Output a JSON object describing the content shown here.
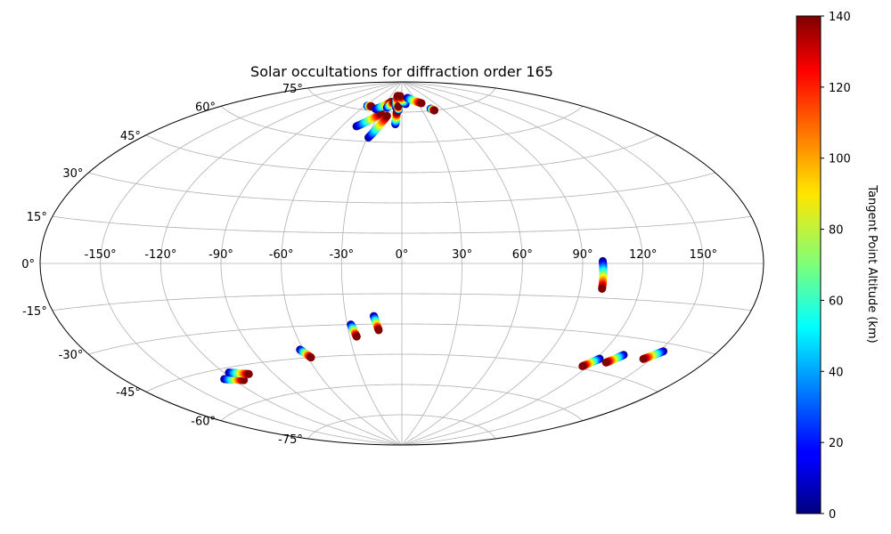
{
  "chart_data": {
    "type": "scatter",
    "projection": "aitoff",
    "title": "Solar occultations for diffraction order 165",
    "lon_ticks": [
      "-150°",
      "-120°",
      "-90°",
      "-60°",
      "-30°",
      "0°",
      "30°",
      "60°",
      "90°",
      "120°",
      "150°"
    ],
    "lon_tick_values": [
      -150,
      -120,
      -90,
      -60,
      -30,
      0,
      30,
      60,
      90,
      120,
      150
    ],
    "lat_ticks": [
      "75°",
      "60°",
      "45°",
      "30°",
      "15°",
      "0°",
      "-15°",
      "-30°",
      "-45°",
      "-60°",
      "-75°"
    ],
    "lat_tick_values": [
      75,
      60,
      45,
      30,
      15,
      0,
      -15,
      -30,
      -45,
      -60,
      -75
    ],
    "grid": true,
    "colorbar": {
      "label": "Tangent Point Altitude (km)",
      "min": 0,
      "max": 140,
      "ticks": [
        "0",
        "20",
        "40",
        "60",
        "80",
        "100",
        "120",
        "140"
      ],
      "tick_values": [
        0,
        20,
        40,
        60,
        80,
        100,
        120,
        140
      ],
      "colormap": "jet"
    },
    "tracks": [
      {
        "lon_start": -57,
        "lat_start": 77,
        "lon_end": -50,
        "lat_end": 77
      },
      {
        "lon_start": -46,
        "lat_start": 67,
        "lon_end": -28,
        "lat_end": 74
      },
      {
        "lon_start": -29,
        "lat_start": 62,
        "lon_end": -19,
        "lat_end": 73
      },
      {
        "lon_start": -40,
        "lat_start": 76,
        "lon_end": -21,
        "lat_end": 80
      },
      {
        "lon_start": -24,
        "lat_start": 77,
        "lon_end": -16,
        "lat_end": 80
      },
      {
        "lon_start": -12,
        "lat_start": 80,
        "lon_end": -11,
        "lat_end": 83
      },
      {
        "lon_start": -9,
        "lat_start": 77,
        "lon_end": -12,
        "lat_end": 83
      },
      {
        "lon_start": -7,
        "lat_start": 69,
        "lon_end": -7,
        "lat_end": 75
      },
      {
        "lon_start": -5,
        "lat_start": 76,
        "lon_end": -6,
        "lat_end": 78
      },
      {
        "lon_start": 7,
        "lat_start": 79,
        "lon_end": -5,
        "lat_end": 83
      },
      {
        "lon_start": 14,
        "lat_start": 82,
        "lon_end": 37,
        "lat_end": 79
      },
      {
        "lon_start": 44,
        "lat_start": 76,
        "lon_end": 47,
        "lat_end": 75
      },
      {
        "lon_start": 100,
        "lat_start": 1,
        "lon_end": 101,
        "lat_end": -11
      },
      {
        "lon_start": -28,
        "lat_start": -30,
        "lon_end": -26,
        "lat_end": -36
      },
      {
        "lon_start": -15,
        "lat_start": -26,
        "lon_end": -13,
        "lat_end": -33
      },
      {
        "lon_start": -62,
        "lat_start": -41,
        "lon_end": -58,
        "lat_end": -45
      },
      {
        "lon_start": -125,
        "lat_start": -49,
        "lon_end": -114,
        "lat_end": -51
      },
      {
        "lon_start": -117,
        "lat_start": -47,
        "lon_end": -106,
        "lat_end": -49
      },
      {
        "lon_start": 122,
        "lat_start": -40,
        "lon_end": 117,
        "lat_end": -44
      },
      {
        "lon_start": 133,
        "lat_start": -37,
        "lon_end": 128,
        "lat_end": -41
      },
      {
        "lon_start": 152,
        "lat_start": -33,
        "lon_end": 146,
        "lat_end": -37
      }
    ]
  }
}
